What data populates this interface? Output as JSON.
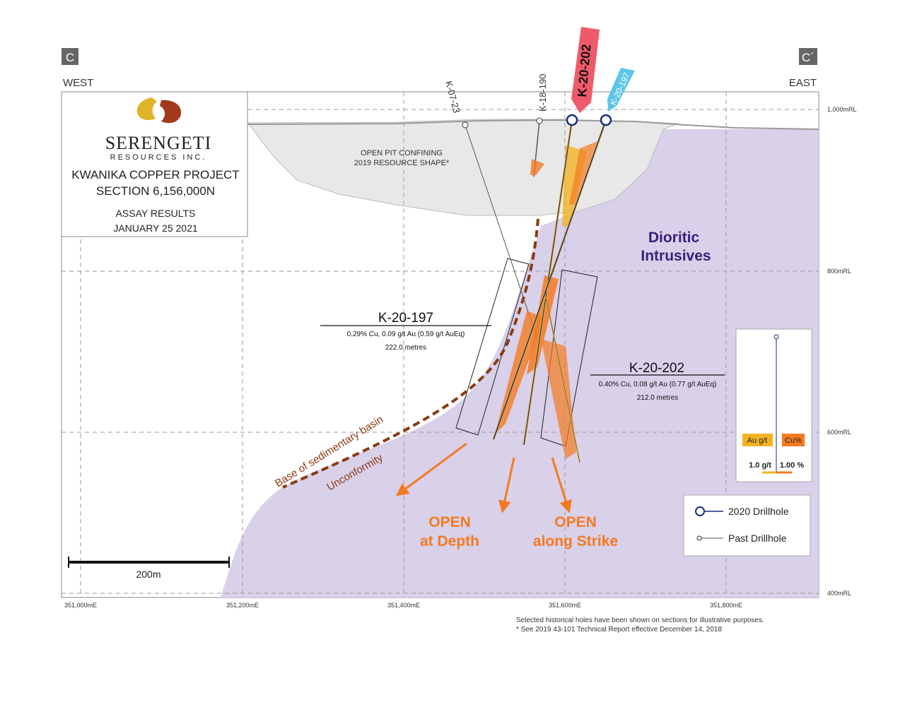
{
  "section_markers": {
    "left": "C",
    "right": "C´"
  },
  "directions": {
    "west": "WEST",
    "east": "EAST"
  },
  "title_block": {
    "company_main": "SERENGETI",
    "company_sub": "RESOURCES INC.",
    "project": "KWANIKA COPPER PROJECT",
    "section": "SECTION 6,156,000N",
    "assay_line1": "ASSAY RESULTS",
    "assay_line2": "JANUARY 25 2021"
  },
  "elevation_labels": [
    "1,000mRL",
    "800mRL",
    "600mRL",
    "400mRL"
  ],
  "easting_labels": [
    "351,000mE",
    "351,200mE",
    "351,400mE",
    "351,600mE",
    "351,800mE"
  ],
  "drillholes": {
    "k07_23": "K-07-23",
    "k18_190": "K-18-190",
    "k20_202": "K-20-202",
    "k20_197": "K-20-197"
  },
  "pit_label": {
    "line1": "OPEN PIT CONFINING",
    "line2": "2019 RESOURCE SHAPE*"
  },
  "intrusives_label": {
    "line1": "Dioritic",
    "line2": "Intrusives"
  },
  "unconformity": {
    "line1": "Base of sedimentary basin",
    "line2": "Unconformity"
  },
  "intercepts": {
    "k20_197": {
      "title": "K-20-197",
      "grade": "0.29% Cu, 0.09 g/t Au (0.59 g/t AuEq)",
      "length": "222.0 metres"
    },
    "k20_202": {
      "title": "K-20-202",
      "grade": "0.40% Cu, 0.08 g/t Au (0.77 g/t AuEq)",
      "length": "212.0 metres"
    }
  },
  "open_labels": {
    "depth_line1": "OPEN",
    "depth_line2": "at Depth",
    "strike_line1": "OPEN",
    "strike_line2": "along Strike"
  },
  "histogram_legend": {
    "au": "Au g/t",
    "cu": "Cu%",
    "au_scale": "1.0 g/t",
    "cu_scale": "1.00 %"
  },
  "drillhole_legend": {
    "new": "2020 Drillhole",
    "past": "Past Drillhole"
  },
  "scale_bar": {
    "label": "200m"
  },
  "footnotes": {
    "line1": "Selected historical holes have been shown on sections for illustrative purposes.",
    "line2": "* See 2019 43-101 Technical Report effective December 14, 2018"
  },
  "colors": {
    "intrusive_fill": "#d9d0ea",
    "pit_fill": "#e8e8e8",
    "drill_blue": "#1a2f7a",
    "gold": "#f2b323",
    "copper": "#f47a20",
    "k202_flag": "#ef5a6a",
    "k197_flag": "#5cc6e8",
    "unconformity": "#8a3a12",
    "dioritic_text": "#3a1f7a",
    "open_orange": "#f47a20"
  }
}
